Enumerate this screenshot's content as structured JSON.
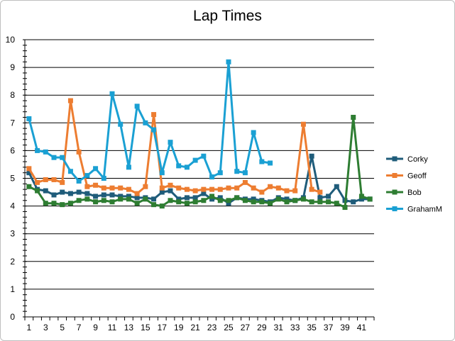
{
  "chart_data": {
    "type": "line",
    "title": "Lap Times",
    "xlabel": "",
    "ylabel": "",
    "ylim": [
      0,
      10
    ],
    "ytick_step": 1,
    "x_max": 42,
    "x_tick_labels": [
      1,
      3,
      5,
      7,
      9,
      11,
      13,
      15,
      17,
      19,
      21,
      23,
      25,
      27,
      29,
      31,
      33,
      35,
      37,
      39,
      41
    ],
    "grid": "horizontal",
    "legend_position": "right",
    "series": [
      {
        "name": "Corky",
        "color": "#1f5c7a",
        "values": [
          5.2,
          4.6,
          4.55,
          4.4,
          4.5,
          4.45,
          4.5,
          4.45,
          4.35,
          4.4,
          4.4,
          4.35,
          4.35,
          4.3,
          4.3,
          4.25,
          4.5,
          4.55,
          4.25,
          4.3,
          4.3,
          4.45,
          4.25,
          4.3,
          4.1,
          4.3,
          4.25,
          4.25,
          4.2,
          4.15,
          4.3,
          4.25,
          4.2,
          4.3,
          5.8,
          4.3,
          4.35,
          4.7,
          4.2,
          4.15,
          4.25,
          4.25
        ]
      },
      {
        "name": "Geoff",
        "color": "#ed7d31",
        "values": [
          5.35,
          4.85,
          4.95,
          4.95,
          4.85,
          7.8,
          5.95,
          4.7,
          4.75,
          4.65,
          4.65,
          4.65,
          4.6,
          4.45,
          4.7,
          7.3,
          4.65,
          4.75,
          4.65,
          4.6,
          4.55,
          4.6,
          4.6,
          4.6,
          4.65,
          4.65,
          4.85,
          4.65,
          4.5,
          4.7,
          4.65,
          4.55,
          4.55,
          6.95,
          4.6,
          4.5,
          null,
          null,
          null,
          null,
          null,
          null
        ]
      },
      {
        "name": "Bob",
        "color": "#2e7d32",
        "values": [
          4.7,
          4.55,
          4.1,
          4.1,
          4.05,
          4.1,
          4.2,
          4.25,
          4.15,
          4.2,
          4.15,
          4.25,
          4.25,
          4.1,
          4.25,
          4.05,
          4.0,
          4.2,
          4.15,
          4.1,
          4.15,
          4.2,
          4.35,
          4.2,
          4.2,
          4.3,
          4.2,
          4.15,
          4.15,
          4.1,
          4.25,
          4.15,
          4.2,
          4.25,
          4.15,
          4.15,
          4.15,
          4.1,
          3.95,
          7.2,
          4.35,
          4.25
        ]
      },
      {
        "name": "GrahamM",
        "color": "#1aa0d3",
        "values": [
          7.15,
          6.0,
          5.95,
          5.75,
          5.75,
          5.25,
          4.9,
          5.1,
          5.35,
          5.0,
          8.05,
          6.95,
          5.4,
          7.6,
          7.0,
          6.75,
          5.2,
          6.3,
          5.45,
          5.4,
          5.65,
          5.8,
          5.05,
          5.2,
          9.2,
          5.25,
          5.2,
          6.65,
          5.6,
          5.55,
          null,
          null,
          null,
          null,
          null,
          null,
          null,
          null,
          null,
          null,
          null,
          null
        ]
      }
    ]
  }
}
